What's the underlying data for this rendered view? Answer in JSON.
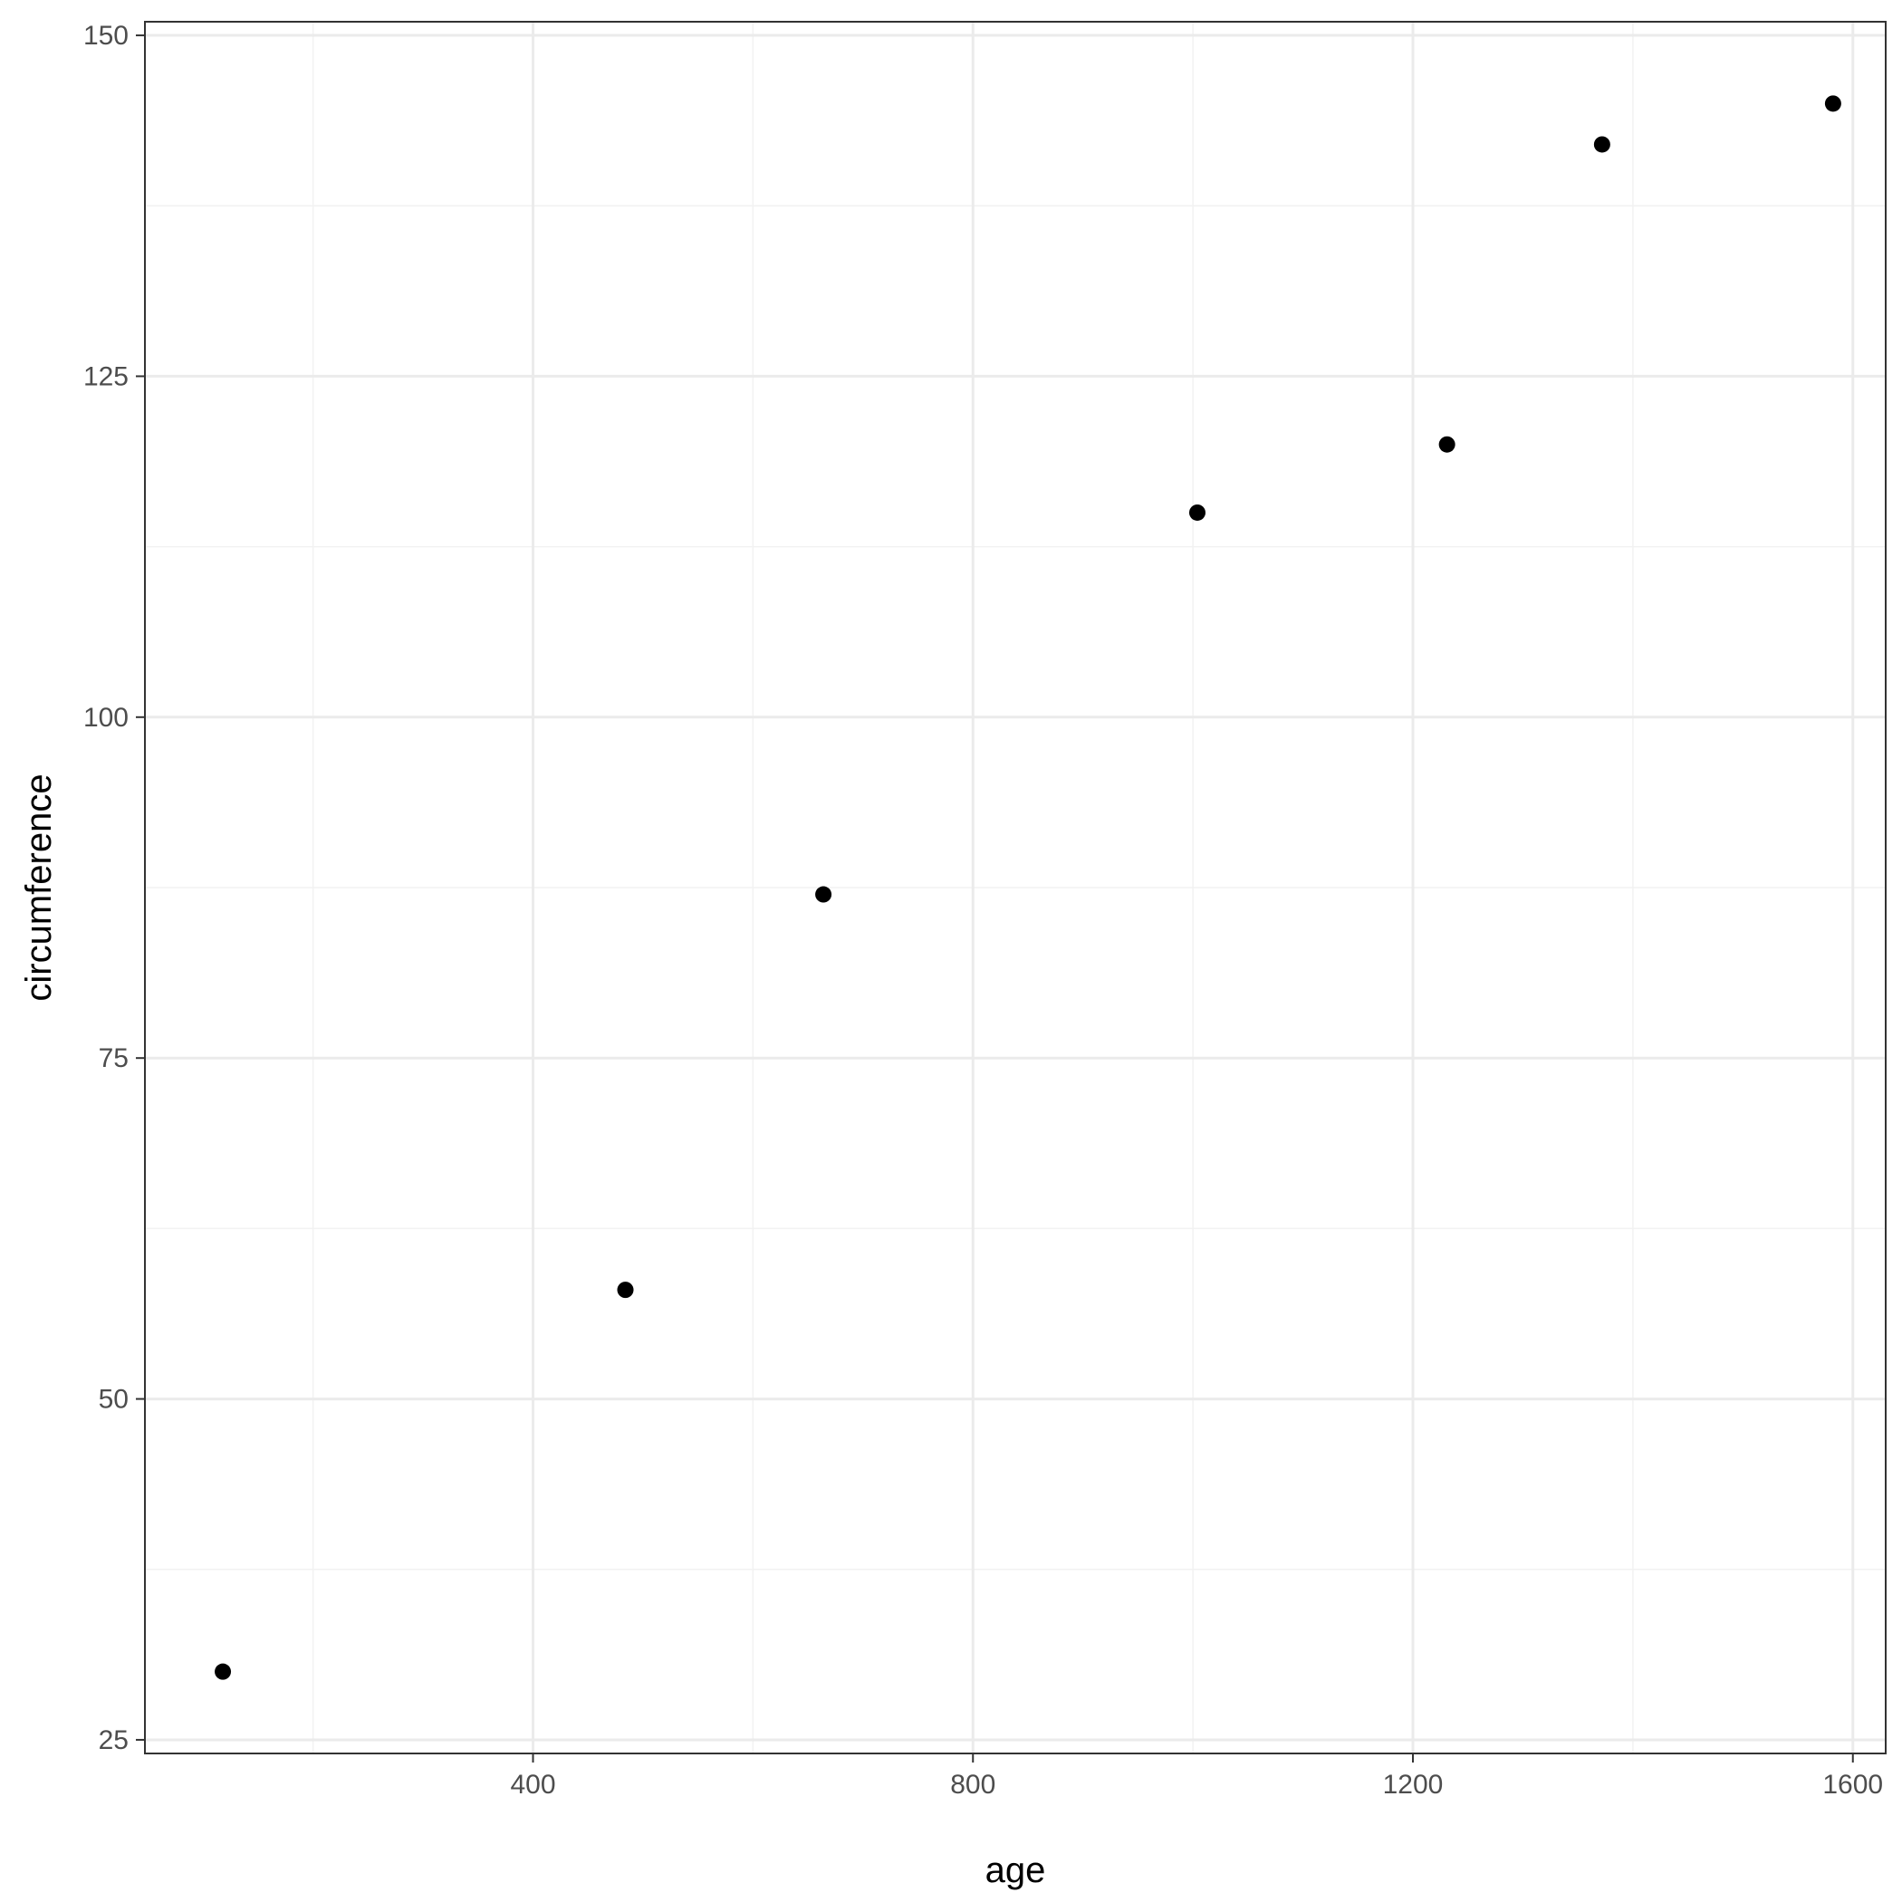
{
  "chart_data": {
    "type": "scatter",
    "title": "",
    "xlabel": "age",
    "ylabel": "circumference",
    "xlim": [
      47.15,
      1629.85
    ],
    "ylim": [
      24.0,
      151.0
    ],
    "x_ticks_major": [
      400,
      800,
      1200,
      1600
    ],
    "x_ticks_minor": [
      200,
      600,
      1000,
      1400
    ],
    "y_ticks_major": [
      25,
      50,
      75,
      100,
      125,
      150
    ],
    "y_ticks_minor": [
      37.5,
      62.5,
      87.5,
      112.5,
      137.5
    ],
    "grid": true,
    "legend": "none",
    "colors": {
      "point": "#000000",
      "grid_major": "#ebebeb",
      "grid_minor": "#f2f2f2",
      "panel_border": "#333333"
    },
    "series": [
      {
        "x": [
          118,
          484,
          664,
          1004,
          1231,
          1372,
          1582
        ],
        "y": [
          30,
          58,
          87,
          115,
          120,
          142,
          145
        ]
      }
    ]
  }
}
